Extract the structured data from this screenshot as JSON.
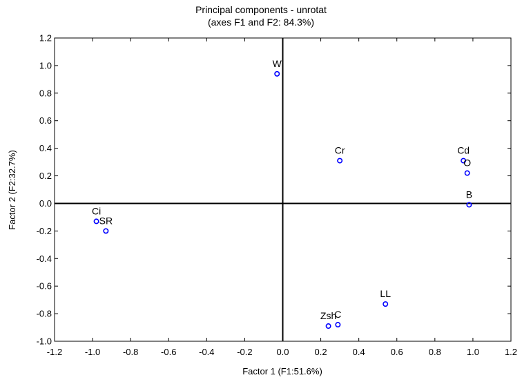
{
  "chart_data": {
    "type": "scatter",
    "title": "Principal components - unrotat",
    "subtitle": "(axes F1 and F2: 84.3%)",
    "xlabel": "Factor 1 (F1:51.6%)",
    "ylabel": "Factor 2 (F2:32.7%)",
    "xlim": [
      -1.2,
      1.2
    ],
    "ylim": [
      -1.0,
      1.2
    ],
    "xticks": [
      "-1.2",
      "-1.0",
      "-0.8",
      "-0.6",
      "-0.4",
      "-0.2",
      "0.0",
      "0.2",
      "0.4",
      "0.6",
      "0.8",
      "1.0",
      "1.2"
    ],
    "yticks": [
      "-1.0",
      "-0.8",
      "-0.6",
      "-0.4",
      "-0.2",
      "0.0",
      "0.2",
      "0.4",
      "0.6",
      "0.8",
      "1.0",
      "1.2"
    ],
    "marker_color": "#0000ff",
    "grid": false,
    "reference_lines": {
      "x": 0,
      "y": 0
    },
    "points": [
      {
        "label": "W",
        "x": -0.03,
        "y": 0.94
      },
      {
        "label": "Cr",
        "x": 0.3,
        "y": 0.31
      },
      {
        "label": "Cd",
        "x": 0.95,
        "y": 0.31
      },
      {
        "label": "O",
        "x": 0.97,
        "y": 0.22
      },
      {
        "label": "B",
        "x": 0.98,
        "y": -0.01
      },
      {
        "label": "Ci",
        "x": -0.98,
        "y": -0.13
      },
      {
        "label": "SR",
        "x": -0.93,
        "y": -0.2
      },
      {
        "label": "LL",
        "x": 0.54,
        "y": -0.73
      },
      {
        "label": "Zsh",
        "x": 0.24,
        "y": -0.89
      },
      {
        "label": "C",
        "x": 0.29,
        "y": -0.88
      }
    ]
  }
}
